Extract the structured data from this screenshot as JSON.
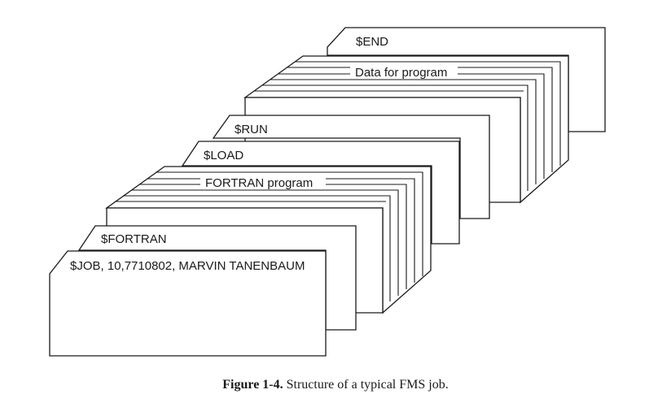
{
  "cards": {
    "end": "$END",
    "data": "Data for program",
    "run": "$RUN",
    "load": "$LOAD",
    "fortran_program": "FORTRAN program",
    "fortran": "$FORTRAN",
    "job": "$JOB, 10,7710802, MARVIN TANENBAUM"
  },
  "caption": {
    "number": "Figure 1-4.",
    "text": "Structure of a typical FMS job."
  }
}
